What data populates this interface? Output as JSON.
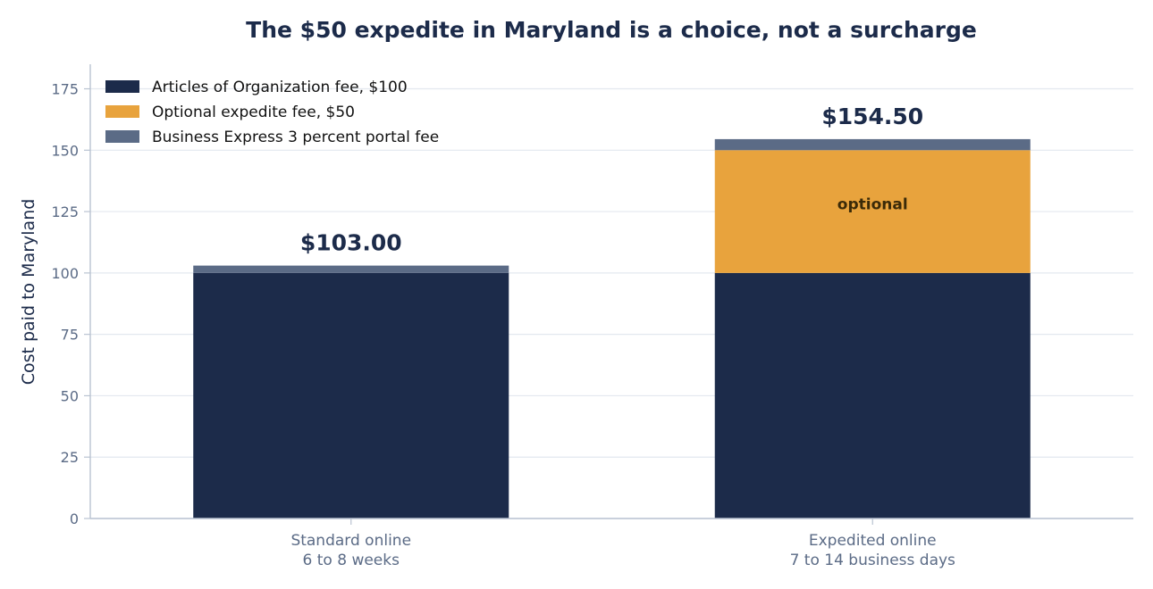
{
  "chart_data": {
    "type": "bar",
    "stacked": true,
    "title": "The $50 expedite in Maryland is a choice, not a surcharge",
    "ylabel": "Cost paid to Maryland",
    "xlabel": "",
    "ylim": [
      0,
      185
    ],
    "yticks": [
      0,
      25,
      50,
      75,
      100,
      125,
      150,
      175
    ],
    "grid": true,
    "legend_position": "top-left",
    "categories": [
      [
        "Standard online",
        "6 to 8 weeks"
      ],
      [
        "Expedited online",
        "7 to 14 business days"
      ]
    ],
    "series": [
      {
        "name": "Articles of Organization fee, $100",
        "color": "#1c2b4a",
        "values": [
          100,
          100
        ]
      },
      {
        "name": "Optional expedite fee, $50",
        "color": "#e8a33d",
        "values": [
          0,
          50
        ]
      },
      {
        "name": "Business Express 3 percent portal fee",
        "color": "#5b6b86",
        "values": [
          3,
          4.5
        ]
      }
    ],
    "totals": [
      "$103.00",
      "$154.50"
    ],
    "segment_annotations": [
      {
        "series": 1,
        "category": 1,
        "text": "optional"
      }
    ]
  }
}
